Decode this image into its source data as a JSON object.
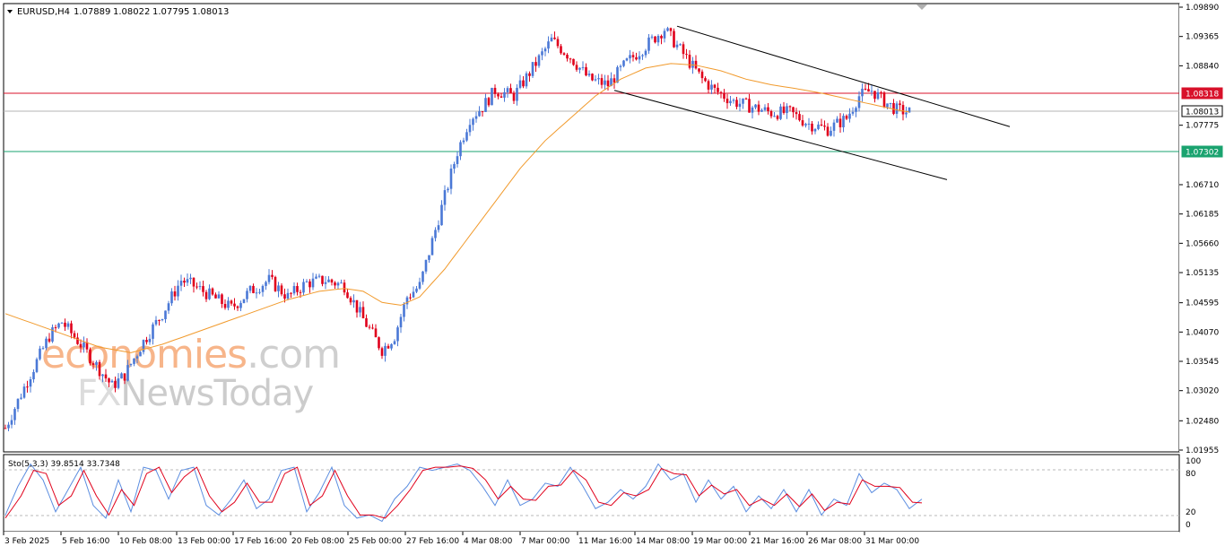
{
  "header": {
    "symbol": "EURUSD,H4",
    "open": "1.07889",
    "high": "1.08022",
    "low": "1.07795",
    "close": "1.08013"
  },
  "watermark": {
    "line1_part1": "economies",
    "line1_part2": ".com",
    "line2_part1": "FX",
    "line2_part2": "NewsToday"
  },
  "price_levels": {
    "resistance": "1.08318",
    "current": "1.08013",
    "support": "1.07302"
  },
  "colors": {
    "bull": "#4a78d6",
    "bear": "#e0001b",
    "ma": "#f19a2c",
    "resistance": "#d8112a",
    "support": "#1aa36f",
    "current": "#9a9a9a",
    "stoch_main": "#5b8de0",
    "stoch_signal": "#e0001b"
  },
  "indicator": {
    "label": "Sto(5,3,3) 39.8514 33.7348",
    "main_value": 39.8514,
    "signal_value": 33.7348,
    "levels": [
      80,
      20
    ],
    "ticks": [
      "100",
      "80",
      "20",
      "0"
    ]
  },
  "chart_data": {
    "type": "candlestick",
    "title": "EURUSD,H4",
    "y_ticks": [
      "1.09890",
      "1.09365",
      "1.08840",
      "1.08318",
      "1.08013",
      "1.07775",
      "1.07302",
      "1.06710",
      "1.06185",
      "1.05660",
      "1.05135",
      "1.04595",
      "1.04070",
      "1.03545",
      "1.03020",
      "1.02480",
      "1.01955"
    ],
    "x_ticks": [
      "3 Feb 2025",
      "5 Feb 16:00",
      "10 Feb 08:00",
      "13 Feb 00:00",
      "17 Feb 16:00",
      "20 Feb 08:00",
      "25 Feb 00:00",
      "27 Feb 16:00",
      "4 Mar 08:00",
      "7 Mar 00:00",
      "11 Mar 16:00",
      "14 Mar 08:00",
      "19 Mar 00:00",
      "21 Mar 16:00",
      "26 Mar 08:00",
      "31 Mar 00:00"
    ],
    "ylim": [
      1.0182,
      1.0995
    ],
    "approx_close_path": [
      [
        0,
        1.0235
      ],
      [
        7,
        1.032
      ],
      [
        14,
        1.04
      ],
      [
        18,
        1.0425
      ],
      [
        24,
        1.0385
      ],
      [
        28,
        1.0355
      ],
      [
        34,
        1.031
      ],
      [
        38,
        1.033
      ],
      [
        44,
        1.039
      ],
      [
        50,
        1.044
      ],
      [
        56,
        1.05
      ],
      [
        60,
        1.049
      ],
      [
        66,
        1.047
      ],
      [
        72,
        1.045
      ],
      [
        78,
        1.048
      ],
      [
        84,
        1.05
      ],
      [
        90,
        1.047
      ],
      [
        96,
        1.0495
      ],
      [
        102,
        1.05
      ],
      [
        108,
        1.049
      ],
      [
        114,
        1.043
      ],
      [
        120,
        1.0375
      ],
      [
        124,
        1.04
      ],
      [
        128,
        1.047
      ],
      [
        132,
        1.049
      ],
      [
        138,
        1.061
      ],
      [
        144,
        1.073
      ],
      [
        148,
        1.079
      ],
      [
        152,
        1.081
      ],
      [
        156,
        1.084
      ],
      [
        162,
        1.083
      ],
      [
        168,
        1.088
      ],
      [
        174,
        1.093
      ],
      [
        180,
        1.09
      ],
      [
        186,
        1.086
      ],
      [
        192,
        1.085
      ],
      [
        198,
        1.089
      ],
      [
        204,
        1.092
      ],
      [
        210,
        1.095
      ],
      [
        214,
        1.092
      ],
      [
        218,
        1.089
      ],
      [
        222,
        1.086
      ],
      [
        226,
        1.084
      ],
      [
        232,
        1.082
      ],
      [
        238,
        1.081
      ],
      [
        244,
        1.08
      ],
      [
        250,
        1.08
      ],
      [
        256,
        1.078
      ],
      [
        262,
        1.077
      ],
      [
        268,
        1.079
      ],
      [
        272,
        1.083
      ],
      [
        276,
        1.084
      ],
      [
        280,
        1.082
      ],
      [
        284,
        1.0805
      ],
      [
        288,
        1.0801
      ]
    ],
    "moving_average": [
      [
        0,
        1.044
      ],
      [
        10,
        1.042
      ],
      [
        20,
        1.04
      ],
      [
        30,
        1.038
      ],
      [
        40,
        1.037
      ],
      [
        50,
        1.0385
      ],
      [
        60,
        1.0405
      ],
      [
        70,
        1.0425
      ],
      [
        80,
        1.0445
      ],
      [
        90,
        1.0465
      ],
      [
        100,
        1.048
      ],
      [
        108,
        1.0485
      ],
      [
        114,
        1.048
      ],
      [
        120,
        1.046
      ],
      [
        126,
        1.0455
      ],
      [
        132,
        1.047
      ],
      [
        140,
        1.052
      ],
      [
        148,
        1.058
      ],
      [
        156,
        1.064
      ],
      [
        164,
        1.07
      ],
      [
        172,
        1.075
      ],
      [
        180,
        1.079
      ],
      [
        188,
        1.083
      ],
      [
        196,
        1.086
      ],
      [
        204,
        1.088
      ],
      [
        212,
        1.0888
      ],
      [
        220,
        1.0885
      ],
      [
        228,
        1.0875
      ],
      [
        236,
        1.086
      ],
      [
        244,
        1.085
      ],
      [
        252,
        1.0843
      ],
      [
        260,
        1.0835
      ],
      [
        268,
        1.0825
      ],
      [
        276,
        1.0815
      ],
      [
        284,
        1.0805
      ],
      [
        288,
        1.0801
      ]
    ],
    "trendlines": [
      {
        "from": [
          214,
          1.0955
        ],
        "to": [
          320,
          1.0775
        ]
      },
      {
        "from": [
          194,
          1.084
        ],
        "to": [
          300,
          1.068
        ]
      }
    ],
    "stoch_main_path": [
      [
        0,
        15
      ],
      [
        4,
        60
      ],
      [
        8,
        95
      ],
      [
        12,
        70
      ],
      [
        16,
        20
      ],
      [
        20,
        55
      ],
      [
        24,
        90
      ],
      [
        28,
        30
      ],
      [
        32,
        10
      ],
      [
        36,
        70
      ],
      [
        40,
        20
      ],
      [
        44,
        90
      ],
      [
        48,
        85
      ],
      [
        52,
        40
      ],
      [
        56,
        85
      ],
      [
        60,
        90
      ],
      [
        64,
        30
      ],
      [
        68,
        15
      ],
      [
        72,
        40
      ],
      [
        76,
        70
      ],
      [
        80,
        25
      ],
      [
        84,
        40
      ],
      [
        88,
        85
      ],
      [
        92,
        90
      ],
      [
        96,
        20
      ],
      [
        100,
        50
      ],
      [
        104,
        90
      ],
      [
        108,
        30
      ],
      [
        112,
        10
      ],
      [
        116,
        15
      ],
      [
        120,
        5
      ],
      [
        124,
        40
      ],
      [
        128,
        60
      ],
      [
        132,
        90
      ],
      [
        136,
        85
      ],
      [
        140,
        90
      ],
      [
        144,
        95
      ],
      [
        148,
        85
      ],
      [
        152,
        60
      ],
      [
        156,
        30
      ],
      [
        160,
        70
      ],
      [
        164,
        30
      ],
      [
        168,
        40
      ],
      [
        172,
        65
      ],
      [
        176,
        60
      ],
      [
        180,
        90
      ],
      [
        184,
        60
      ],
      [
        188,
        25
      ],
      [
        192,
        35
      ],
      [
        196,
        55
      ],
      [
        200,
        40
      ],
      [
        204,
        60
      ],
      [
        208,
        95
      ],
      [
        212,
        70
      ],
      [
        216,
        80
      ],
      [
        220,
        35
      ],
      [
        224,
        70
      ],
      [
        228,
        40
      ],
      [
        232,
        60
      ],
      [
        236,
        20
      ],
      [
        240,
        45
      ],
      [
        244,
        25
      ],
      [
        248,
        55
      ],
      [
        252,
        20
      ],
      [
        256,
        55
      ],
      [
        260,
        15
      ],
      [
        264,
        40
      ],
      [
        268,
        30
      ],
      [
        272,
        80
      ],
      [
        276,
        50
      ],
      [
        280,
        65
      ],
      [
        284,
        55
      ],
      [
        288,
        25
      ],
      [
        292,
        40
      ]
    ],
    "stoch_signal_path": [
      [
        0,
        10
      ],
      [
        5,
        45
      ],
      [
        9,
        85
      ],
      [
        13,
        80
      ],
      [
        17,
        30
      ],
      [
        21,
        45
      ],
      [
        25,
        85
      ],
      [
        29,
        45
      ],
      [
        33,
        15
      ],
      [
        37,
        55
      ],
      [
        41,
        30
      ],
      [
        45,
        80
      ],
      [
        49,
        90
      ],
      [
        53,
        50
      ],
      [
        57,
        75
      ],
      [
        61,
        90
      ],
      [
        65,
        45
      ],
      [
        69,
        20
      ],
      [
        73,
        35
      ],
      [
        77,
        65
      ],
      [
        81,
        35
      ],
      [
        85,
        35
      ],
      [
        89,
        80
      ],
      [
        93,
        90
      ],
      [
        97,
        30
      ],
      [
        101,
        45
      ],
      [
        105,
        85
      ],
      [
        109,
        45
      ],
      [
        113,
        15
      ],
      [
        117,
        15
      ],
      [
        121,
        10
      ],
      [
        125,
        30
      ],
      [
        129,
        55
      ],
      [
        133,
        85
      ],
      [
        137,
        90
      ],
      [
        141,
        90
      ],
      [
        145,
        92
      ],
      [
        149,
        88
      ],
      [
        153,
        70
      ],
      [
        157,
        40
      ],
      [
        161,
        60
      ],
      [
        165,
        40
      ],
      [
        169,
        38
      ],
      [
        173,
        60
      ],
      [
        177,
        62
      ],
      [
        181,
        85
      ],
      [
        185,
        70
      ],
      [
        189,
        35
      ],
      [
        193,
        30
      ],
      [
        197,
        50
      ],
      [
        201,
        45
      ],
      [
        205,
        55
      ],
      [
        209,
        88
      ],
      [
        213,
        80
      ],
      [
        217,
        78
      ],
      [
        221,
        45
      ],
      [
        225,
        62
      ],
      [
        229,
        48
      ],
      [
        233,
        55
      ],
      [
        237,
        30
      ],
      [
        241,
        40
      ],
      [
        245,
        30
      ],
      [
        249,
        48
      ],
      [
        253,
        28
      ],
      [
        257,
        48
      ],
      [
        261,
        22
      ],
      [
        265,
        35
      ],
      [
        269,
        32
      ],
      [
        273,
        70
      ],
      [
        277,
        60
      ],
      [
        281,
        60
      ],
      [
        285,
        58
      ],
      [
        289,
        35
      ],
      [
        292,
        34
      ]
    ]
  }
}
